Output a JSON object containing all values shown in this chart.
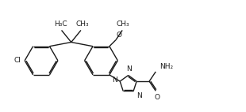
{
  "bg_color": "#ffffff",
  "line_color": "#1a1a1a",
  "line_width": 1.0,
  "font_size": 6.5,
  "fig_width": 3.1,
  "fig_height": 1.42,
  "dpi": 100,
  "xlim": [
    0,
    10.5
  ],
  "ylim": [
    0,
    4.8
  ]
}
